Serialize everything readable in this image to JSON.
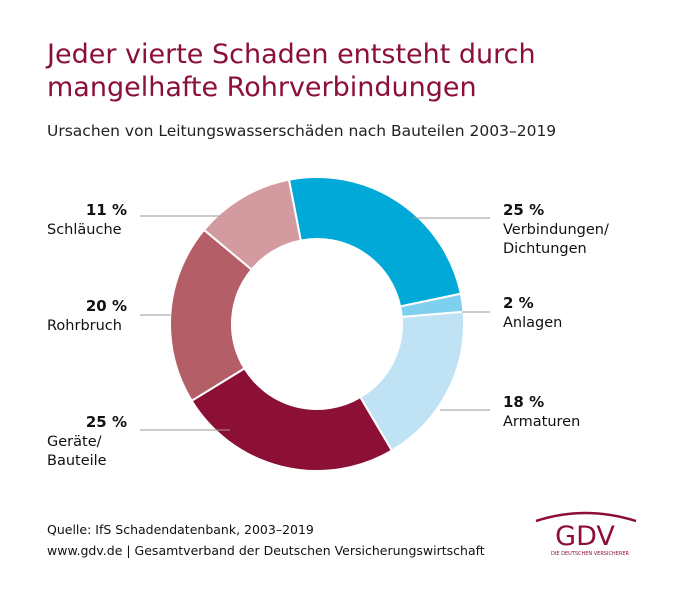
{
  "chart_data": {
    "type": "donut",
    "title": "Jeder vierte Schaden entsteht durch\nmangelhafte Rohrverbindungen",
    "subtitle": "Ursachen von Leitungswasserschäden nach Bauteilen 2003–2019",
    "categories": [
      "Verbindungen/\nDichtungen",
      "Anlagen",
      "Armaturen",
      "Geräte/\nBauteile",
      "Rohrbruch",
      "Schläuche"
    ],
    "values": [
      25,
      2,
      18,
      25,
      20,
      11
    ],
    "value_labels": [
      "25 %",
      "2 %",
      "18 %",
      "25 %",
      "20 %",
      "11 %"
    ],
    "colors": [
      "#00a9d8",
      "#7fcfee",
      "#bfe2f4",
      "#8c0f35",
      "#b45e68",
      "#d39a9f"
    ],
    "source": "Quelle: IfS Schadendatenbank, 2003–2019",
    "footer": "www.gdv.de | Gesamtverband der Deutschen Versicherungswirtschaft",
    "logo": "GDV",
    "logo_tagline": "DIE DEUTSCHEN VERSICHERER"
  }
}
